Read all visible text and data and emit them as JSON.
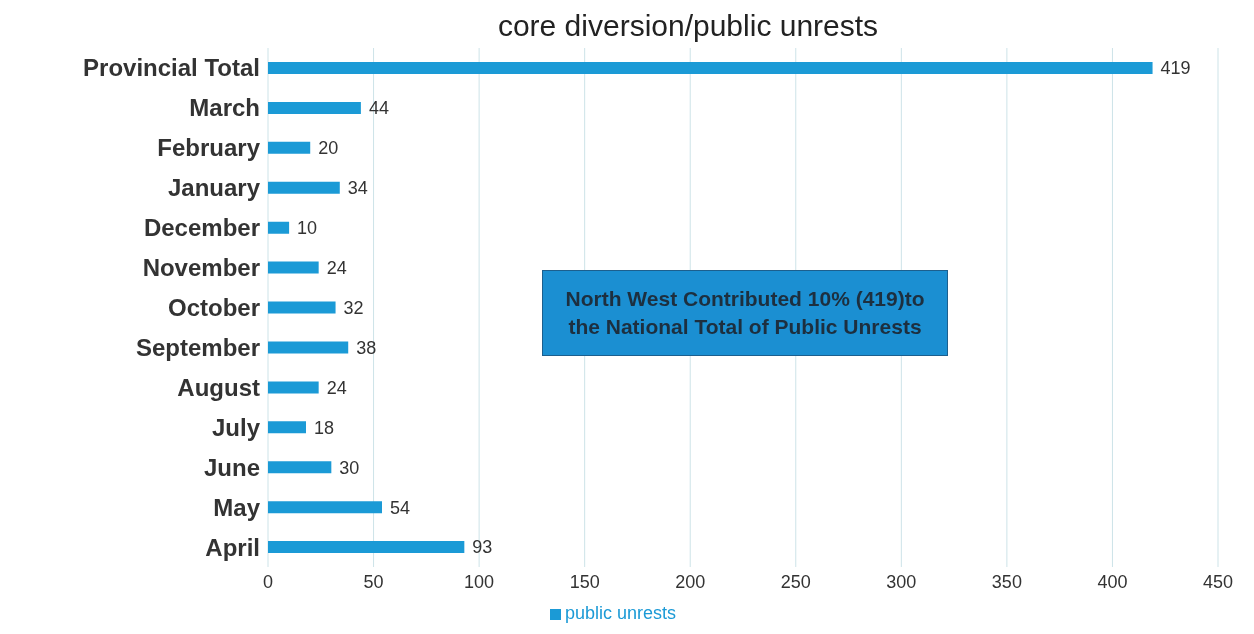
{
  "chart_data": {
    "type": "bar",
    "orientation": "horizontal",
    "title": "core diversion/public unrests",
    "categories": [
      "Provincial Total",
      "March",
      "February",
      "January",
      "December",
      "November",
      "October",
      "September",
      "August",
      "July",
      "June",
      "May",
      "April"
    ],
    "series": [
      {
        "name": "public unrests",
        "color": "#1b9ad6",
        "values": [
          419,
          44,
          20,
          34,
          10,
          24,
          32,
          38,
          24,
          18,
          30,
          54,
          93
        ]
      }
    ],
    "xlim": [
      0,
      450
    ],
    "xticks": [
      0,
      50,
      100,
      150,
      200,
      250,
      300,
      350,
      400,
      450
    ],
    "grid": "x",
    "legend": "bottom",
    "data_labels": true,
    "annotations": [
      "North West Contributed 10%  (419)to the National Total of Public Unrests"
    ]
  }
}
